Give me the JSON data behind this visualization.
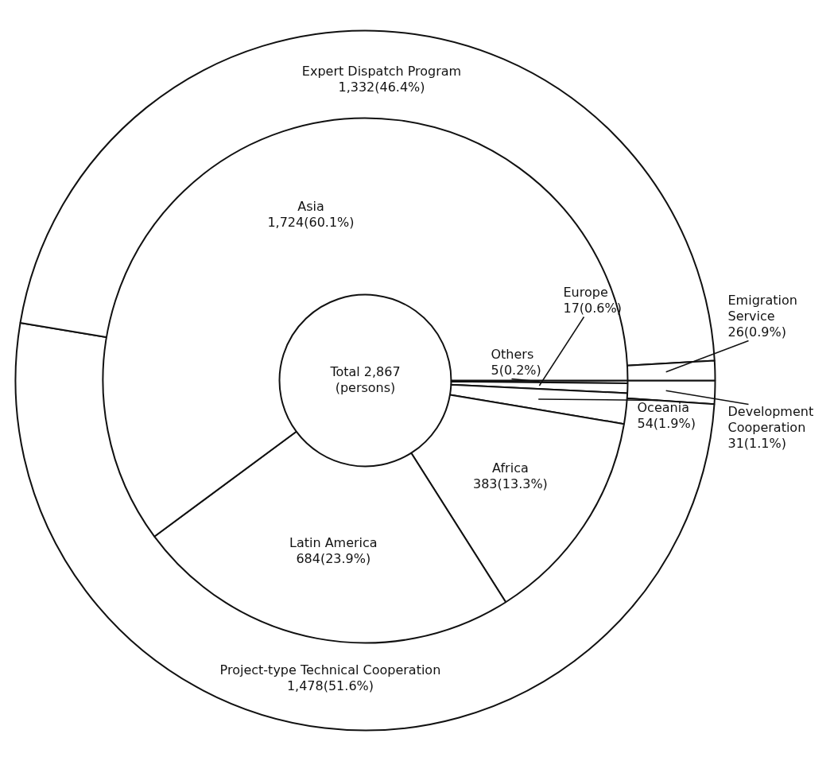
{
  "chart_data": [
    {
      "type": "donut",
      "categories": [
        "Development Cooperation",
        "Project-type Technical Cooperation",
        "Expert Dispatch Program",
        "Emigration Service"
      ],
      "values": [
        31,
        1478,
        1332,
        26
      ],
      "colors": [
        "#ffffff",
        "#ffffff",
        "#ffffff",
        "#ffffff"
      ],
      "value_labels": [
        "31(1.1%)",
        "1,478(51.6%)",
        "1,332(46.4%)",
        "26(0.9%)"
      ]
    },
    {
      "type": "donut",
      "categories": [
        "Others",
        "Europe",
        "Oceania",
        "Africa",
        "Latin America",
        "Asia"
      ],
      "values": [
        5,
        17,
        54,
        383,
        684,
        1724
      ],
      "colors": [
        "#ffffff",
        "#ffffff",
        "#ffffff",
        "#ffffff",
        "#ffffff",
        "#ffffff"
      ],
      "value_labels": [
        "5(0.2%)",
        "17(0.6%)",
        "54(1.9%)",
        "383(13.3%)",
        "684(23.9%)",
        "1,724(60.1%)"
      ],
      "annotations": [
        "Total 2,867 (persons)"
      ]
    }
  ]
}
